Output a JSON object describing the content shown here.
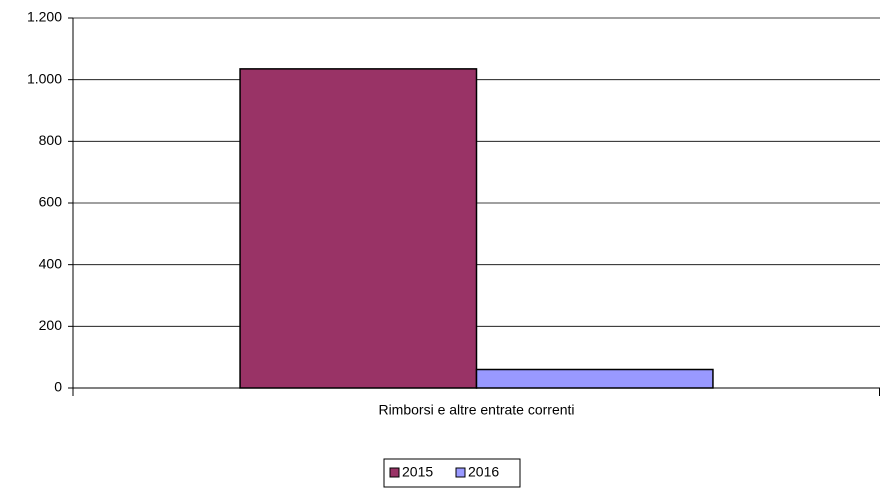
{
  "chart_data": {
    "type": "bar",
    "categories": [
      "Rimborsi e altre entrate correnti"
    ],
    "series": [
      {
        "name": "2015",
        "color": "#993366",
        "values": [
          1035
        ]
      },
      {
        "name": "2016",
        "color": "#9999ff",
        "values": [
          60
        ]
      }
    ],
    "ylim": [
      0,
      1200
    ],
    "yticks": [
      0,
      200,
      400,
      600,
      800,
      {
        "value": 1000,
        "label": "1.000"
      },
      {
        "value": 1200,
        "label": "1.200"
      }
    ],
    "grid": true,
    "legend": "bottom"
  }
}
